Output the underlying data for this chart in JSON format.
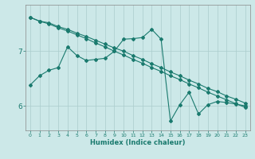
{
  "xlabel": "Humidex (Indice chaleur)",
  "bg_color": "#cce8e8",
  "line_color": "#1a7a6e",
  "grid_color": "#aacccc",
  "xlim": [
    -0.5,
    23.5
  ],
  "ylim": [
    5.55,
    7.85
  ],
  "xticks": [
    0,
    1,
    2,
    3,
    4,
    5,
    6,
    7,
    8,
    9,
    10,
    11,
    12,
    13,
    14,
    15,
    16,
    17,
    18,
    19,
    20,
    21,
    22,
    23
  ],
  "yticks": [
    6,
    7
  ],
  "line1_x": [
    0,
    1,
    2,
    3,
    4,
    5,
    6,
    7,
    8,
    9,
    10,
    11,
    12,
    13,
    14,
    15,
    16,
    17,
    18,
    19,
    20,
    21,
    22,
    23
  ],
  "line1_y": [
    7.62,
    7.55,
    7.52,
    7.45,
    7.4,
    7.33,
    7.27,
    7.2,
    7.13,
    7.06,
    7.0,
    6.92,
    6.85,
    6.77,
    6.7,
    6.62,
    6.55,
    6.47,
    6.4,
    6.32,
    6.26,
    6.18,
    6.12,
    6.05
  ],
  "line2_x": [
    0,
    1,
    2,
    3,
    4,
    5,
    6,
    7,
    8,
    9,
    10,
    11,
    12,
    13,
    14,
    15,
    16,
    17,
    18,
    19,
    20,
    21,
    22,
    23
  ],
  "line2_y": [
    7.62,
    7.55,
    7.5,
    7.43,
    7.37,
    7.3,
    7.23,
    7.15,
    7.08,
    7.0,
    6.93,
    6.85,
    6.78,
    6.7,
    6.63,
    6.55,
    6.48,
    6.4,
    6.33,
    6.25,
    6.18,
    6.11,
    6.04,
    5.97
  ],
  "line3_x": [
    0,
    1,
    2,
    3,
    4,
    5,
    6,
    7,
    8,
    9,
    10,
    11,
    12,
    13,
    14,
    15,
    16,
    17,
    18,
    19,
    20,
    21,
    22,
    23
  ],
  "line3_y": [
    6.38,
    6.55,
    6.65,
    6.7,
    7.08,
    6.92,
    6.83,
    6.85,
    6.87,
    7.0,
    7.22,
    7.23,
    7.25,
    7.4,
    7.22,
    5.72,
    6.02,
    6.25,
    5.85,
    6.02,
    6.08,
    6.06,
    6.03,
    6.0
  ]
}
